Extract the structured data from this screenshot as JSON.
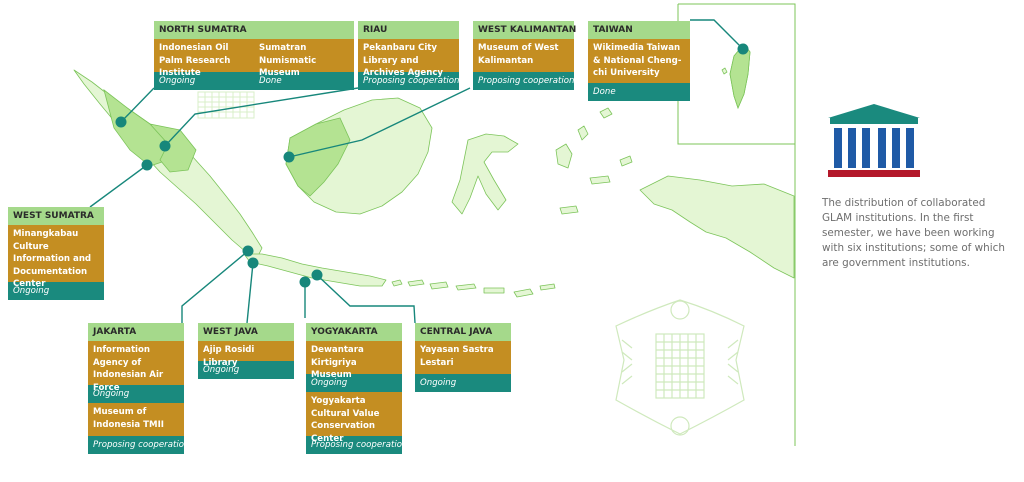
{
  "regions": [
    {
      "id": "north-sumatra",
      "title": "NORTH SUMATRA",
      "institutions": [
        {
          "name": "Indonesian Oil Palm Research Institute",
          "status": "Ongoing"
        },
        {
          "name": "Sumatran Numismatic Museum",
          "status": "Done"
        }
      ]
    },
    {
      "id": "riau",
      "title": "RIAU",
      "institutions": [
        {
          "name": "Pekanbaru City Library and Archives Agency",
          "status": "Proposing cooperation"
        }
      ]
    },
    {
      "id": "west-kalimantan",
      "title": "WEST KALIMANTAN",
      "institutions": [
        {
          "name": "Museum of West Kalimantan",
          "status": "Proposing cooperation"
        }
      ]
    },
    {
      "id": "taiwan",
      "title": "TAIWAN",
      "institutions": [
        {
          "name": "Wikimedia Taiwan & National Cheng-chi University",
          "status": "Done"
        }
      ]
    },
    {
      "id": "west-sumatra",
      "title": "WEST SUMATRA",
      "institutions": [
        {
          "name": "Minangkabau Culture Information and Documentation Center",
          "status": "Ongoing"
        }
      ]
    },
    {
      "id": "jakarta",
      "title": "JAKARTA",
      "institutions": [
        {
          "name": "Information Agency of Indonesian Air Force",
          "status": "Ongoing"
        },
        {
          "name": "Museum of Indonesia TMII",
          "status": "Proposing cooperation"
        }
      ]
    },
    {
      "id": "west-java",
      "title": "WEST JAVA",
      "institutions": [
        {
          "name": "Ajip Rosidi Library",
          "status": "Ongoing"
        }
      ]
    },
    {
      "id": "yogyakarta",
      "title": "YOGYAKARTA",
      "institutions": [
        {
          "name": "Dewantara Kirtigriya Museum",
          "status": "Ongoing"
        },
        {
          "name": "Yogyakarta Cultural Value Conservation Center",
          "status": "Proposing cooperation"
        }
      ]
    },
    {
      "id": "central-java",
      "title": "CENTRAL JAVA",
      "institutions": [
        {
          "name": "Yayasan Sastra Lestari",
          "status": "Ongoing"
        }
      ]
    }
  ],
  "description": "The distribution of collaborated GLAM institutions. In the first semester, we have been working with six institutions; some of which are government institutions.",
  "colors": {
    "header": "#a5d98b",
    "institution": "#c48e22",
    "status": "#1a8a7e",
    "land": "#e4f6d4",
    "land_stroke": "#7cc45a",
    "highlight": "#b4e392",
    "marker": "#17877b",
    "icon_roof": "#1a8a7e",
    "icon_columns": "#1f5aa6",
    "icon_base": "#b4182a"
  },
  "icons": {
    "institution": "museum-building-icon"
  }
}
